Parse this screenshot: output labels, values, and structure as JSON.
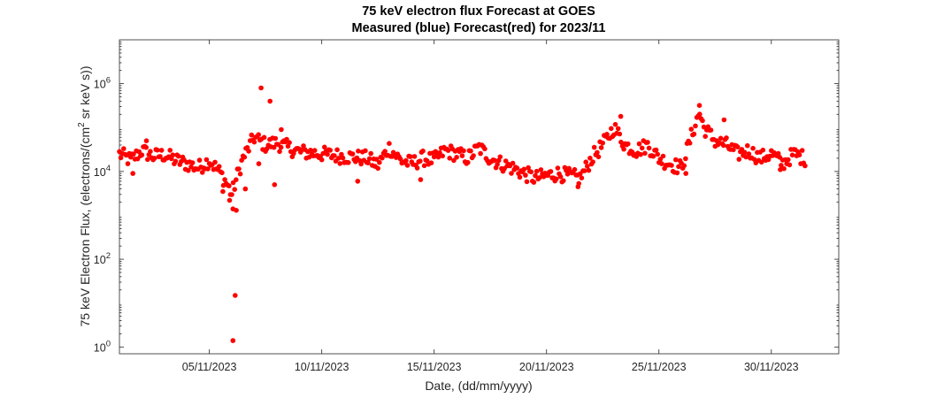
{
  "chart_data": {
    "type": "scatter",
    "title_line1": "75 keV electron flux Forecast at GOES",
    "title_line2": "Measured (blue) Forecast(red) for 2023/11",
    "xlabel": "Date, (dd/mm/yyyy)",
    "ylabel_main": "75 keV Electron Flux, (electrons/(cm",
    "ylabel_sup": "2",
    "ylabel_tail": " sr keV s))",
    "y_scale": "log",
    "ylim": [
      0.7,
      10000000
    ],
    "xlim_days": [
      0.0,
      32.0
    ],
    "grid": false,
    "x_tick_labels": [
      "05/11/2023",
      "10/11/2023",
      "15/11/2023",
      "20/11/2023",
      "25/11/2023",
      "30/11/2023"
    ],
    "x_tick_days": [
      4,
      9,
      14,
      19,
      24,
      29
    ],
    "y_ticks": [
      {
        "base": "10",
        "exp": "0",
        "value": 1
      },
      {
        "base": "10",
        "exp": "2",
        "value": 100
      },
      {
        "base": "10",
        "exp": "4",
        "value": 10000
      },
      {
        "base": "10",
        "exp": "6",
        "value": 1000000
      }
    ],
    "marker_color": "#ff0000",
    "series": [
      {
        "name": "Forecast",
        "color": "#ff0000",
        "anchors": [
          [
            0.0,
            25000
          ],
          [
            0.5,
            18000
          ],
          [
            1.0,
            30000
          ],
          [
            1.5,
            22000
          ],
          [
            2.0,
            24000
          ],
          [
            2.5,
            18000
          ],
          [
            3.0,
            15000
          ],
          [
            3.5,
            12000
          ],
          [
            4.0,
            18000
          ],
          [
            4.5,
            9000
          ],
          [
            4.8,
            5000
          ],
          [
            5.0,
            3000
          ],
          [
            5.3,
            10000
          ],
          [
            5.5,
            20000
          ],
          [
            6.0,
            60000
          ],
          [
            6.5,
            40000
          ],
          [
            7.0,
            45000
          ],
          [
            7.5,
            35000
          ],
          [
            8.0,
            28000
          ],
          [
            9.0,
            25000
          ],
          [
            10.0,
            22000
          ],
          [
            11.0,
            20000
          ],
          [
            11.5,
            14000
          ],
          [
            12.0,
            35000
          ],
          [
            12.5,
            18000
          ],
          [
            13.0,
            15000
          ],
          [
            13.5,
            20000
          ],
          [
            14.0,
            18000
          ],
          [
            14.5,
            30000
          ],
          [
            15.0,
            25000
          ],
          [
            15.5,
            20000
          ],
          [
            16.0,
            35000
          ],
          [
            16.5,
            20000
          ],
          [
            17.0,
            15000
          ],
          [
            17.5,
            12000
          ],
          [
            18.0,
            9000
          ],
          [
            18.5,
            7000
          ],
          [
            19.0,
            8000
          ],
          [
            19.5,
            9000
          ],
          [
            20.0,
            8000
          ],
          [
            20.5,
            7000
          ],
          [
            21.0,
            20000
          ],
          [
            21.5,
            40000
          ],
          [
            22.0,
            100000
          ],
          [
            22.5,
            40000
          ],
          [
            23.0,
            30000
          ],
          [
            23.5,
            40000
          ],
          [
            24.0,
            20000
          ],
          [
            24.5,
            15000
          ],
          [
            25.0,
            12000
          ],
          [
            25.5,
            80000
          ],
          [
            25.8,
            220000
          ],
          [
            26.0,
            100000
          ],
          [
            26.5,
            50000
          ],
          [
            27.0,
            40000
          ],
          [
            27.5,
            25000
          ],
          [
            28.0,
            30000
          ],
          [
            28.5,
            20000
          ],
          [
            29.0,
            25000
          ],
          [
            29.5,
            15000
          ],
          [
            30.0,
            25000
          ],
          [
            30.5,
            20000
          ]
        ],
        "outliers": [
          [
            0.6,
            9000
          ],
          [
            1.2,
            50000
          ],
          [
            4.6,
            3500
          ],
          [
            4.9,
            2200
          ],
          [
            5.05,
            1400
          ],
          [
            5.2,
            1300
          ],
          [
            5.15,
            15
          ],
          [
            5.05,
            1.4
          ],
          [
            5.6,
            4000
          ],
          [
            6.2,
            15000
          ],
          [
            6.3,
            800000
          ],
          [
            6.7,
            400000
          ],
          [
            6.9,
            5000
          ],
          [
            7.2,
            90000
          ],
          [
            10.6,
            6000
          ],
          [
            13.4,
            6500
          ],
          [
            22.3,
            180000
          ],
          [
            25.8,
            320000
          ],
          [
            26.9,
            150000
          ],
          [
            25.2,
            9000
          ],
          [
            20.4,
            4500
          ],
          [
            29.4,
            11000
          ]
        ]
      }
    ]
  }
}
